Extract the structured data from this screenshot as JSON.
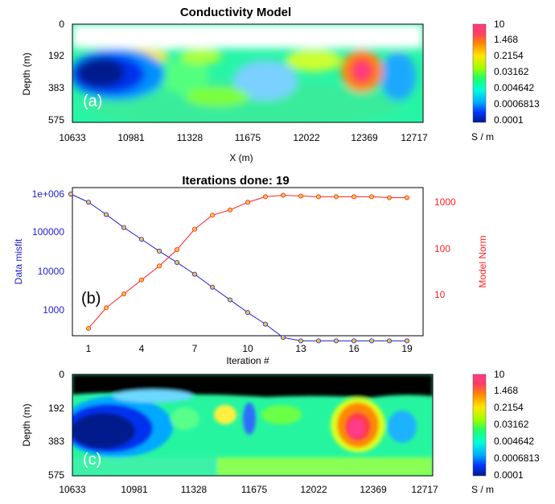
{
  "chart_data": [
    {
      "type": "heatmap",
      "panel_label": "(a)",
      "title": "Conductivity Model",
      "xlabel": "X (m)",
      "ylabel": "Depth (m)",
      "x_ticks": [
        "10633",
        "10981",
        "11328",
        "11675",
        "12022",
        "12369",
        "12717"
      ],
      "y_ticks": [
        "0",
        "192",
        "383",
        "575"
      ],
      "xlim": [
        10633,
        12717
      ],
      "ylim": [
        0,
        575
      ],
      "colorbar": {
        "labels": [
          "10",
          "1.468",
          "0.2154",
          "0.03162",
          "0.004642",
          "0.0006813",
          "0.0001"
        ],
        "unit": "S / m",
        "colors": [
          "#ff3a8a",
          "#ff3d3d",
          "#ff8a00",
          "#ffe600",
          "#b7ff00",
          "#2aff5a",
          "#00ffd2",
          "#00a8ff",
          "#0030ff",
          "#001a8c"
        ]
      }
    },
    {
      "type": "line",
      "panel_label": "(b)",
      "title": "Iterations done: 19",
      "xlabel": "Iteration #",
      "ylabel": "Data misfit",
      "y2label": "Model Norm",
      "x_ticks": [
        "1",
        "4",
        "7",
        "10",
        "13",
        "16",
        "19"
      ],
      "y_ticks": [
        "1e+006",
        "100000",
        "10000",
        "1000"
      ],
      "y2_ticks": [
        "1000",
        "100",
        "10"
      ],
      "scale": "log",
      "x": [
        0,
        1,
        2,
        3,
        4,
        5,
        6,
        7,
        8,
        9,
        10,
        11,
        12,
        13,
        14,
        15,
        16,
        17,
        18,
        19
      ],
      "series": [
        {
          "name": "Data misfit",
          "axis": "left",
          "color": "#2222cc",
          "values": [
            1000000,
            620000,
            300000,
            140000,
            70000,
            35000,
            18000,
            9000,
            4200,
            2000,
            950,
            480,
            220,
            180,
            180,
            180,
            180,
            180,
            180,
            180
          ]
        },
        {
          "name": "Model Norm",
          "axis": "right",
          "color": "#ff2222",
          "values": [
            null,
            1.8,
            5,
            10,
            20,
            40,
            90,
            250,
            500,
            650,
            950,
            1250,
            1350,
            1300,
            1250,
            1250,
            1250,
            1250,
            1200,
            1200
          ]
        }
      ],
      "marker_color": "#f5c542"
    },
    {
      "type": "heatmap",
      "panel_label": "(c)",
      "ylabel": "Depth (m)",
      "x_ticks": [
        "10633",
        "10981",
        "11328",
        "11675",
        "12022",
        "12369",
        "12717"
      ],
      "y_ticks": [
        "0",
        "192",
        "383",
        "575"
      ],
      "xlim": [
        10633,
        12717
      ],
      "ylim": [
        0,
        575
      ],
      "colorbar": {
        "labels": [
          "10",
          "1.468",
          "0.2154",
          "0.03162",
          "0.004642",
          "0.0006813",
          "0.0001"
        ],
        "unit": "S / m",
        "colors": [
          "#ff3a8a",
          "#ff3d3d",
          "#ff8a00",
          "#ffe600",
          "#b7ff00",
          "#2aff5a",
          "#00ffd2",
          "#00a8ff",
          "#0030ff",
          "#001a8c"
        ]
      }
    }
  ]
}
